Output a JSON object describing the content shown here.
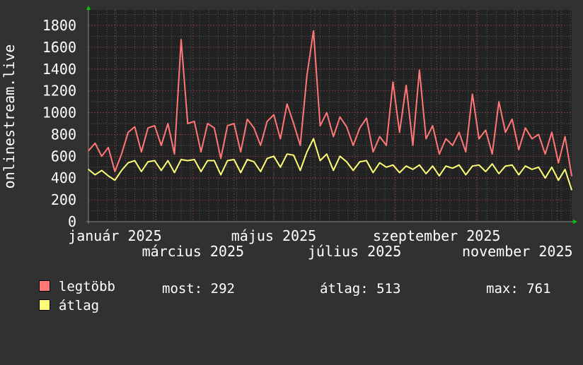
{
  "chart_data": {
    "type": "line",
    "ylabel": "onlinestream.live",
    "ylim": [
      0,
      1800
    ],
    "yticks": [
      0,
      200,
      400,
      600,
      800,
      1000,
      1200,
      1400,
      1600,
      1800
    ],
    "xlim": [
      "2024-12-12",
      "2025-12-12"
    ],
    "xtick_labels": [
      {
        "date": "2025-01-01",
        "label": "január 2025"
      },
      {
        "date": "2025-03-01",
        "label": "március 2025"
      },
      {
        "date": "2025-05-01",
        "label": "május 2025"
      },
      {
        "date": "2025-07-01",
        "label": "július 2025"
      },
      {
        "date": "2025-09-01",
        "label": "szeptember 2025"
      },
      {
        "date": "2025-11-01",
        "label": "november 2025"
      }
    ],
    "grid": true,
    "legend_placement": "bottom",
    "x": [
      "2024-12-12",
      "2024-12-17",
      "2024-12-22",
      "2024-12-27",
      "2025-01-01",
      "2025-01-06",
      "2025-01-11",
      "2025-01-16",
      "2025-01-21",
      "2025-01-26",
      "2025-01-31",
      "2025-02-05",
      "2025-02-10",
      "2025-02-15",
      "2025-02-20",
      "2025-02-25",
      "2025-03-02",
      "2025-03-07",
      "2025-03-12",
      "2025-03-17",
      "2025-03-22",
      "2025-03-27",
      "2025-04-01",
      "2025-04-06",
      "2025-04-11",
      "2025-04-16",
      "2025-04-21",
      "2025-04-26",
      "2025-05-01",
      "2025-05-06",
      "2025-05-11",
      "2025-05-16",
      "2025-05-21",
      "2025-05-26",
      "2025-05-31",
      "2025-06-05",
      "2025-06-10",
      "2025-06-15",
      "2025-06-20",
      "2025-06-25",
      "2025-06-30",
      "2025-07-05",
      "2025-07-10",
      "2025-07-15",
      "2025-07-20",
      "2025-07-25",
      "2025-07-30",
      "2025-08-04",
      "2025-08-09",
      "2025-08-14",
      "2025-08-19",
      "2025-08-24",
      "2025-08-29",
      "2025-09-03",
      "2025-09-08",
      "2025-09-13",
      "2025-09-18",
      "2025-09-23",
      "2025-09-28",
      "2025-10-03",
      "2025-10-08",
      "2025-10-13",
      "2025-10-18",
      "2025-10-23",
      "2025-10-28",
      "2025-11-02",
      "2025-11-07",
      "2025-11-12",
      "2025-11-17",
      "2025-11-22",
      "2025-11-27",
      "2025-12-02",
      "2025-12-07",
      "2025-12-12"
    ],
    "series": [
      {
        "name": "legtöbb",
        "color": "#ff7777",
        "values": [
          650,
          720,
          600,
          680,
          460,
          620,
          820,
          870,
          640,
          860,
          880,
          700,
          900,
          620,
          1670,
          900,
          920,
          640,
          900,
          860,
          580,
          880,
          900,
          640,
          940,
          860,
          700,
          920,
          980,
          760,
          1080,
          900,
          700,
          1340,
          1750,
          880,
          1000,
          780,
          960,
          870,
          700,
          860,
          950,
          640,
          780,
          700,
          1280,
          820,
          1250,
          700,
          1390,
          760,
          880,
          620,
          760,
          700,
          820,
          640,
          1170,
          760,
          840,
          620,
          1100,
          820,
          940,
          660,
          860,
          760,
          800,
          620,
          820,
          540,
          780,
          420
        ]
      },
      {
        "name": "átlag",
        "color": "#ffff77",
        "values": [
          480,
          430,
          470,
          420,
          380,
          470,
          540,
          560,
          460,
          550,
          560,
          470,
          560,
          450,
          570,
          560,
          570,
          460,
          560,
          560,
          430,
          560,
          570,
          450,
          570,
          550,
          460,
          580,
          600,
          500,
          620,
          610,
          470,
          640,
          761,
          560,
          620,
          470,
          600,
          550,
          470,
          550,
          560,
          450,
          540,
          500,
          520,
          450,
          510,
          480,
          520,
          440,
          510,
          420,
          510,
          490,
          520,
          430,
          510,
          520,
          460,
          530,
          440,
          510,
          520,
          430,
          510,
          480,
          500,
          400,
          500,
          380,
          480,
          292
        ]
      }
    ]
  },
  "colors": {
    "background": "#313131",
    "plot_background": "#222222",
    "grid_minor": "#555555",
    "grid_major": "#7a3a3a",
    "axis_arrow": "#00cc00"
  },
  "legend": {
    "max_label": "legtöbb",
    "avg_label": "átlag",
    "now": "most: 292",
    "average": "átlag: 513",
    "maximum": "max: 761"
  }
}
